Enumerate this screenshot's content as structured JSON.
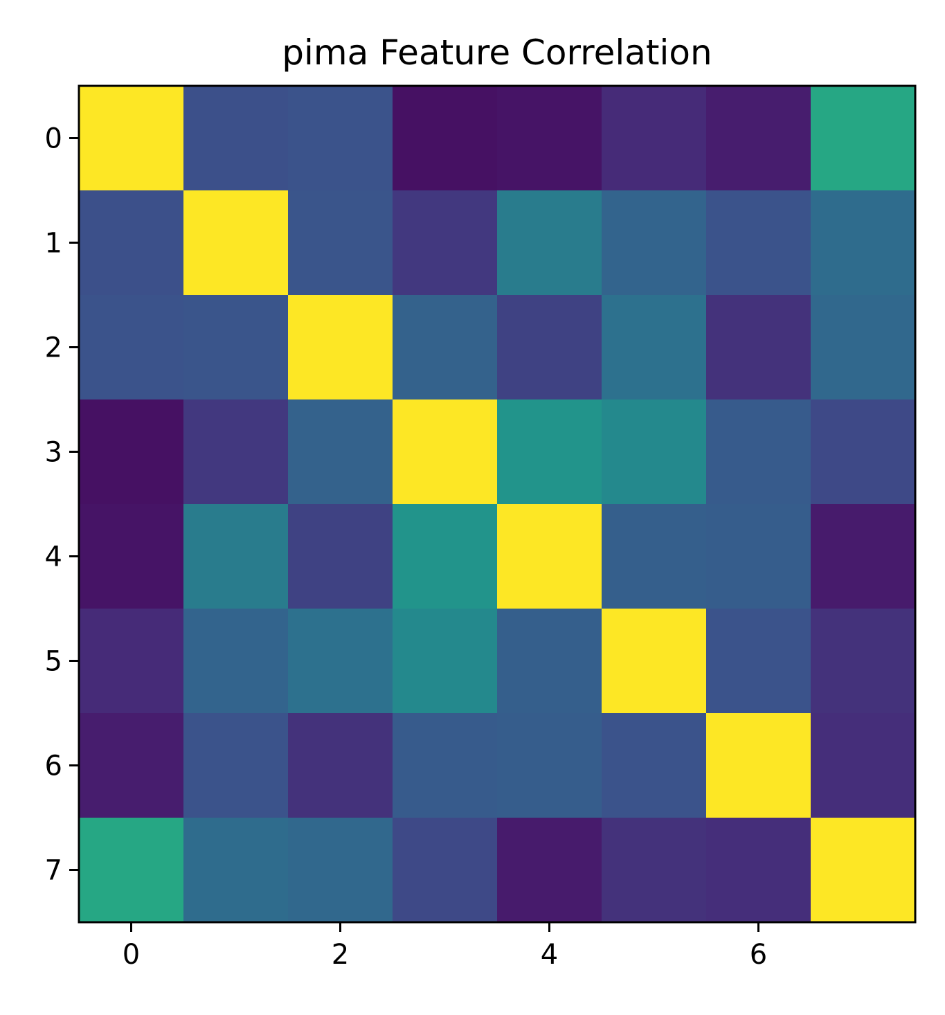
{
  "chart_data": {
    "type": "heatmap",
    "title": "pima Feature Correlation",
    "xlabel": "",
    "ylabel": "",
    "colormap": "viridis",
    "vmin": -0.15,
    "vmax": 1.0,
    "grid": false,
    "x_ticks": [
      0,
      2,
      4,
      6
    ],
    "y_ticks": [
      0,
      1,
      2,
      3,
      4,
      5,
      6,
      7
    ],
    "x_tick_labels": [
      "0",
      "2",
      "4",
      "6"
    ],
    "y_tick_labels": [
      "0",
      "1",
      "2",
      "3",
      "4",
      "5",
      "6",
      "7"
    ],
    "rows": 8,
    "cols": 8,
    "matrix": [
      [
        1.0,
        0.13,
        0.14,
        -0.08,
        -0.07,
        0.02,
        -0.03,
        0.54
      ],
      [
        0.13,
        1.0,
        0.15,
        0.06,
        0.33,
        0.22,
        0.14,
        0.26
      ],
      [
        0.14,
        0.15,
        1.0,
        0.21,
        0.09,
        0.28,
        0.04,
        0.24
      ],
      [
        -0.08,
        0.06,
        0.21,
        1.0,
        0.44,
        0.39,
        0.18,
        0.11
      ],
      [
        -0.07,
        0.33,
        0.09,
        0.44,
        1.0,
        0.2,
        0.19,
        -0.04
      ],
      [
        0.02,
        0.22,
        0.28,
        0.39,
        0.2,
        1.0,
        0.14,
        0.04
      ],
      [
        -0.03,
        0.14,
        0.04,
        0.18,
        0.19,
        0.14,
        1.0,
        0.03
      ],
      [
        0.54,
        0.26,
        0.24,
        0.11,
        -0.04,
        0.04,
        0.03,
        1.0
      ]
    ]
  }
}
